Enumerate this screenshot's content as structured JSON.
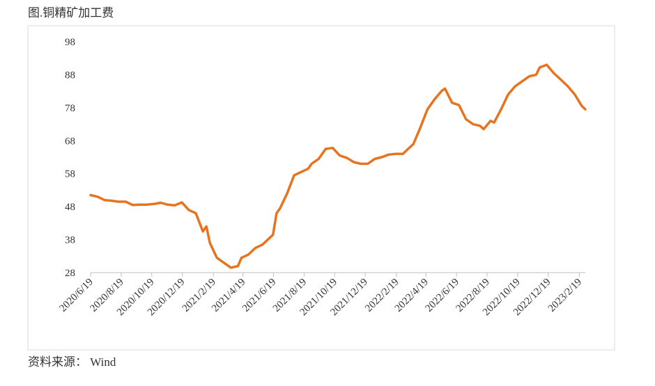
{
  "chart_data": {
    "type": "line",
    "title": "图.铜精矿加工费",
    "source": "资料来源： Wind",
    "x": [
      "2020/6/19",
      "2020/7/3",
      "2020/7/17",
      "2020/7/31",
      "2020/8/14",
      "2020/8/28",
      "2020/9/11",
      "2020/9/25",
      "2020/10/9",
      "2020/10/23",
      "2020/11/6",
      "2020/11/20",
      "2020/12/4",
      "2020/12/18",
      "2021/1/1",
      "2021/1/15",
      "2021/1/29",
      "2021/2/5",
      "2021/2/12",
      "2021/2/26",
      "2021/3/12",
      "2021/3/26",
      "2021/4/9",
      "2021/4/16",
      "2021/4/30",
      "2021/5/14",
      "2021/5/28",
      "2021/6/11",
      "2021/6/18",
      "2021/6/25",
      "2021/7/2",
      "2021/7/16",
      "2021/7/30",
      "2021/8/13",
      "2021/8/27",
      "2021/9/3",
      "2021/9/17",
      "2021/10/1",
      "2021/10/15",
      "2021/10/29",
      "2021/11/12",
      "2021/11/26",
      "2021/12/10",
      "2021/12/24",
      "2022/1/7",
      "2022/1/21",
      "2022/2/4",
      "2022/2/18",
      "2022/3/4",
      "2022/3/11",
      "2022/3/25",
      "2022/4/8",
      "2022/4/22",
      "2022/5/6",
      "2022/5/20",
      "2022/5/27",
      "2022/6/10",
      "2022/6/24",
      "2022/7/8",
      "2022/7/22",
      "2022/8/5",
      "2022/8/12",
      "2022/8/26",
      "2022/9/2",
      "2022/9/16",
      "2022/9/30",
      "2022/10/14",
      "2022/10/28",
      "2022/11/11",
      "2022/11/25",
      "2022/12/2",
      "2022/12/16",
      "2022/12/30",
      "2023/1/13",
      "2023/1/27",
      "2023/2/10",
      "2023/2/24",
      "2023/3/3"
    ],
    "series": [
      {
        "name": "铜精矿加工费",
        "color": "#e8731e",
        "values": [
          51.5,
          51,
          50,
          49.8,
          49.5,
          49.5,
          48.5,
          48.6,
          48.6,
          48.8,
          49.2,
          48.6,
          48.4,
          49.3,
          47,
          46,
          40.5,
          42,
          37,
          32.5,
          31,
          29.5,
          30,
          32.5,
          33.5,
          35.5,
          36.5,
          38.5,
          39.5,
          46,
          47.5,
          52,
          57.5,
          58.5,
          59.5,
          61,
          62.5,
          65.5,
          65.8,
          63.5,
          62.8,
          61.5,
          61,
          61,
          62.5,
          63,
          63.8,
          64,
          64,
          65,
          67,
          72,
          77.5,
          80.5,
          83,
          83.8,
          79.5,
          78.8,
          74.5,
          73,
          72.5,
          71.5,
          74,
          73.5,
          77.5,
          82,
          84.5,
          86,
          87.5,
          88,
          90.2,
          91,
          88.5,
          86.5,
          84.5,
          82,
          78.5,
          77.5
        ]
      }
    ],
    "ylim": [
      28,
      98
    ],
    "yticks": [
      28,
      38,
      48,
      58,
      68,
      78,
      88,
      98
    ],
    "xlim": [
      "2020/6/19",
      "2023/3/3"
    ],
    "xticks": [
      "2020/6/19",
      "2020/8/19",
      "2020/10/19",
      "2020/12/19",
      "2021/2/19",
      "2021/4/19",
      "2021/6/19",
      "2021/8/19",
      "2021/10/19",
      "2021/12/19",
      "2022/2/19",
      "2022/4/19",
      "2022/6/19",
      "2022/8/19",
      "2022/10/19",
      "2022/12/19",
      "2023/2/19"
    ],
    "grid": false
  }
}
